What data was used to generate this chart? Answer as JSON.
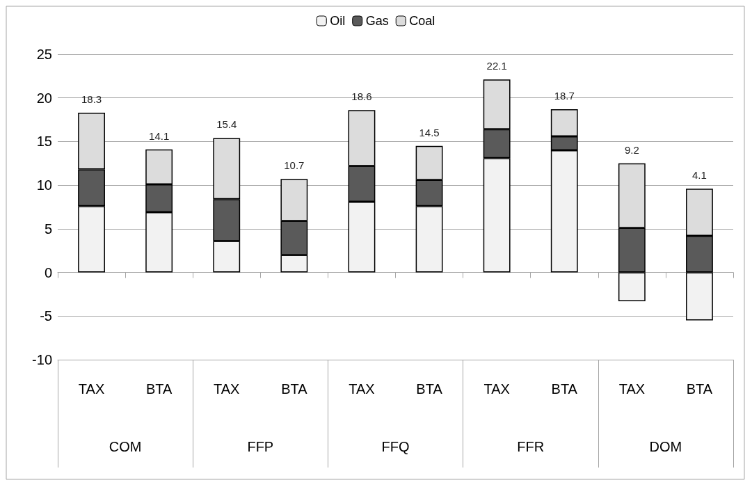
{
  "chart_data": {
    "type": "bar",
    "stacked": true,
    "categories": [
      "TAX",
      "BTA",
      "TAX",
      "BTA",
      "TAX",
      "BTA",
      "TAX",
      "BTA",
      "TAX",
      "BTA"
    ],
    "annotations": [
      "COM",
      "FFP",
      "FFQ",
      "FFR",
      "DOM"
    ],
    "series": [
      {
        "name": "Oil",
        "color": "#f2f2f2",
        "values": [
          7.6,
          6.9,
          3.6,
          2.0,
          8.1,
          7.6,
          13.1,
          14.0,
          -3.3,
          -5.5
        ]
      },
      {
        "name": "Gas",
        "color": "#5a5a5a",
        "values": [
          4.2,
          3.2,
          4.8,
          3.9,
          4.1,
          3.0,
          3.3,
          1.6,
          5.1,
          4.2
        ]
      },
      {
        "name": "Coal",
        "color": "#dcdcdc",
        "values": [
          6.5,
          4.0,
          7.0,
          4.8,
          6.4,
          3.9,
          5.7,
          3.1,
          7.4,
          5.4
        ]
      }
    ],
    "totals": [
      "18.3",
      "14.1",
      "15.4",
      "10.7",
      "18.6",
      "14.5",
      "22.1",
      "18.7",
      "9.2",
      "4.1"
    ],
    "ylim": [
      -10,
      25
    ],
    "yticks": [
      -10,
      -5,
      0,
      5,
      10,
      15,
      20,
      25
    ],
    "grid": "y",
    "legend": "top"
  }
}
